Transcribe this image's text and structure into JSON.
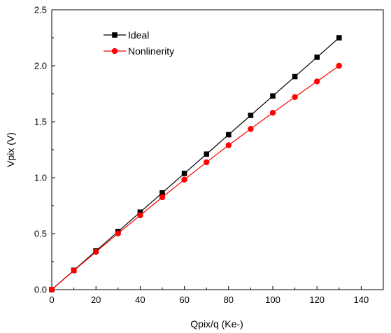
{
  "chart_data": {
    "type": "line",
    "title": "",
    "xlabel": "Qpix/q (Ke-)",
    "ylabel": "Vpix (V)",
    "xlim": [
      0,
      150
    ],
    "ylim": [
      0,
      2.5
    ],
    "x_ticks": [
      0,
      20,
      40,
      60,
      80,
      100,
      120,
      140
    ],
    "y_ticks": [
      0.0,
      0.5,
      1.0,
      1.5,
      2.0,
      2.5
    ],
    "x_tick_labels": [
      "0",
      "20",
      "40",
      "60",
      "80",
      "100",
      "120",
      "140"
    ],
    "y_tick_labels": [
      "0.0",
      "0.5",
      "1.0",
      "1.5",
      "2.0",
      "2.5"
    ],
    "grid": false,
    "legend_position": "top-left",
    "x": [
      0,
      10,
      20,
      30,
      40,
      50,
      60,
      70,
      80,
      90,
      100,
      110,
      120,
      130
    ],
    "series": [
      {
        "name": "Ideal",
        "color": "#000000",
        "marker": "square",
        "values": [
          0.0,
          0.173,
          0.346,
          0.519,
          0.692,
          0.865,
          1.038,
          1.211,
          1.384,
          1.557,
          1.73,
          1.903,
          2.076,
          2.25
        ]
      },
      {
        "name": "Nonlinerity",
        "color": "#ff0000",
        "marker": "circle",
        "values": [
          0.0,
          0.17,
          0.337,
          0.502,
          0.664,
          0.825,
          0.983,
          1.138,
          1.29,
          1.436,
          1.58,
          1.72,
          1.86,
          2.0
        ]
      }
    ]
  }
}
